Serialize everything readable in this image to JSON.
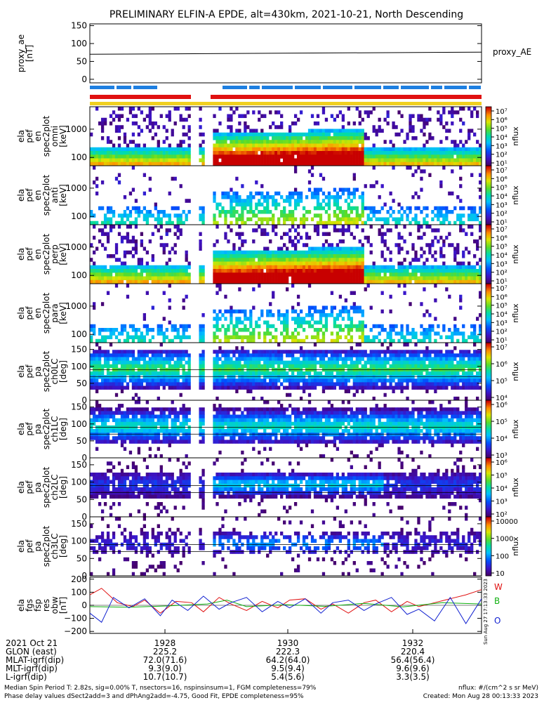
{
  "title": "PRELIMINARY ELFIN-A EPDE, alt=430km, 2021-10-21, North Descending",
  "colors": {
    "status_bar_blue": "#1e7fe0",
    "status_bar_red": "#e01010",
    "status_bar_yellow": "#f0d020",
    "fgm_w": "#e01010",
    "fgm_b": "#10b010",
    "fgm_o": "#1020d0"
  },
  "chart_data": [
    {
      "type": "line",
      "panel": "proxy_ae",
      "ylabel": [
        "proxy_ae",
        "[nT]"
      ],
      "yticks": [
        "150",
        "100",
        "50",
        "0"
      ],
      "ylim": [
        -10,
        155
      ],
      "legend": "proxy_AE",
      "series": [
        {
          "name": "proxy_AE",
          "x": [
            0,
            1
          ],
          "y": [
            70,
            76
          ]
        }
      ]
    },
    {
      "type": "heatmap",
      "panel": "ela pef en spec2plot omni",
      "ylabel": [
        "ela",
        "pef",
        "en",
        "spec2plot",
        "omni",
        "[keV]"
      ],
      "yticks": [
        "1000",
        "100"
      ],
      "colorbar_ticks": [
        "10⁷",
        "10⁶",
        "10⁵",
        "10⁴",
        "10³",
        "10²",
        "10¹"
      ],
      "colorbar_label": "nflux"
    },
    {
      "type": "heatmap",
      "panel": "ela pef en spec2plot anti",
      "ylabel": [
        "ela",
        "pef",
        "en",
        "spec2plot",
        "anti",
        "[keV]"
      ],
      "yticks": [
        "1000",
        "100"
      ],
      "colorbar_ticks": [
        "10⁷",
        "10⁶",
        "10⁵",
        "10⁴",
        "10³",
        "10²",
        "10¹"
      ],
      "colorbar_label": "nflux"
    },
    {
      "type": "heatmap",
      "panel": "ela pef en spec2plot perp",
      "ylabel": [
        "ela",
        "pef",
        "en",
        "spec2plot",
        "perp",
        "[keV]"
      ],
      "yticks": [
        "1000",
        "100"
      ],
      "colorbar_ticks": [
        "10⁷",
        "10⁶",
        "10⁵",
        "10⁴",
        "10³",
        "10²",
        "10¹"
      ],
      "colorbar_label": "nflux"
    },
    {
      "type": "heatmap",
      "panel": "ela pef en spec2plot para",
      "ylabel": [
        "ela",
        "pef",
        "en",
        "spec2plot",
        "para",
        "[keV]"
      ],
      "yticks": [
        "1000",
        "100"
      ],
      "colorbar_ticks": [
        "10⁷",
        "10⁶",
        "10⁵",
        "10⁴",
        "10³",
        "10²",
        "10¹"
      ],
      "colorbar_label": "nflux"
    },
    {
      "type": "heatmap",
      "panel": "ela pef pa spec2plot ch0LC",
      "ylabel": [
        "ela",
        "pef",
        "pa",
        "spec2plot",
        "ch0LC",
        "[deg]"
      ],
      "yticks": [
        "150",
        "100",
        "50",
        "0"
      ],
      "ylim": [
        0,
        170
      ],
      "colorbar_ticks": [
        "10⁷",
        "10⁶",
        "10⁵",
        "10⁴"
      ],
      "colorbar_label": "nflux"
    },
    {
      "type": "heatmap",
      "panel": "ela pef pa spec2plot ch1LC",
      "ylabel": [
        "ela",
        "pef",
        "pa",
        "spec2plot",
        "ch1LC",
        "[deg]"
      ],
      "yticks": [
        "150",
        "100",
        "50",
        "0"
      ],
      "ylim": [
        0,
        170
      ],
      "colorbar_ticks": [
        "10⁶",
        "10⁵",
        "10⁴",
        "10³"
      ],
      "colorbar_label": "nflux"
    },
    {
      "type": "heatmap",
      "panel": "ela pef pa spec2plot ch2LC",
      "ylabel": [
        "ela",
        "pef",
        "pa",
        "spec2plot",
        "ch2LC",
        "[deg]"
      ],
      "yticks": [
        "150",
        "100",
        "50",
        "0"
      ],
      "ylim": [
        0,
        170
      ],
      "colorbar_ticks": [
        "10⁶",
        "10⁵",
        "10⁴",
        "10³",
        "10²"
      ],
      "colorbar_label": "nflux"
    },
    {
      "type": "heatmap",
      "panel": "ela pef pa spec2plot ch3LC",
      "ylabel": [
        "ela",
        "pef",
        "pa",
        "spec2plot",
        "ch3LC",
        "[deg]"
      ],
      "yticks": [
        "150",
        "100",
        "50",
        "0"
      ],
      "ylim": [
        0,
        170
      ],
      "colorbar_ticks": [
        "10000",
        "1000",
        "100",
        "10"
      ],
      "colorbar_label": "nflux"
    },
    {
      "type": "line",
      "panel": "ela fgs fsp res obw",
      "ylabel": [
        "ela",
        "fgs",
        "fsp",
        "res",
        "obw",
        "[nT]"
      ],
      "yticks": [
        "200",
        "100",
        "0",
        "−100",
        "−200"
      ],
      "ylim": [
        -215,
        215
      ],
      "series": [
        {
          "name": "W",
          "x": [
            0,
            0.03,
            0.07,
            0.11,
            0.14,
            0.18,
            0.22,
            0.26,
            0.29,
            0.33,
            0.36,
            0.4,
            0.44,
            0.48,
            0.51,
            0.55,
            0.59,
            0.62,
            0.66,
            0.7,
            0.73,
            0.77,
            0.81,
            0.84,
            0.88,
            0.92,
            0.96,
            1
          ],
          "y": [
            80,
            130,
            20,
            -10,
            40,
            -60,
            30,
            20,
            -50,
            60,
            10,
            -40,
            30,
            -20,
            40,
            50,
            -30,
            10,
            -60,
            20,
            40,
            -50,
            30,
            -10,
            20,
            50,
            80,
            120
          ]
        },
        {
          "name": "B",
          "x": [
            0,
            0.1,
            0.2,
            0.3,
            0.35,
            0.4,
            0.5,
            0.6,
            0.7,
            0.8,
            0.9,
            1
          ],
          "y": [
            -10,
            -15,
            -5,
            10,
            40,
            -10,
            5,
            -8,
            15,
            -12,
            20,
            10
          ]
        },
        {
          "name": "O",
          "x": [
            0,
            0.03,
            0.06,
            0.1,
            0.14,
            0.18,
            0.21,
            0.25,
            0.29,
            0.33,
            0.36,
            0.4,
            0.44,
            0.48,
            0.51,
            0.55,
            0.59,
            0.62,
            0.66,
            0.7,
            0.73,
            0.77,
            0.81,
            0.84,
            0.88,
            0.92,
            0.96,
            1
          ],
          "y": [
            -60,
            -130,
            60,
            -20,
            50,
            -80,
            40,
            -40,
            70,
            -30,
            20,
            60,
            -50,
            30,
            -20,
            50,
            -60,
            20,
            40,
            -40,
            10,
            60,
            -70,
            -30,
            -120,
            60,
            -140,
            50
          ]
        }
      ],
      "legend": [
        "W",
        "B",
        "O"
      ]
    }
  ],
  "x_axis": {
    "ticks": [
      "1928",
      "1930",
      "1932"
    ],
    "rows": [
      {
        "label": "2021 Oct 21",
        "values": [
          "1928",
          "1930",
          "1932"
        ]
      },
      {
        "label": "GLON (east)",
        "values": [
          "225.2",
          "222.3",
          "220.4"
        ]
      },
      {
        "label": "MLAT-igrf(dip)",
        "values": [
          "72.0(71.6)",
          "64.2(64.0)",
          "56.4(56.4)"
        ]
      },
      {
        "label": "MLT-igrf(dip)",
        "values": [
          "9.3(9.0)",
          "9.5(9.4)",
          "9.6(9.6)"
        ]
      },
      {
        "label": "L-igrf(dip)",
        "values": [
          "10.7(10.7)",
          "5.4(5.6)",
          "3.3(3.5)"
        ]
      }
    ]
  },
  "footer": {
    "left_1": "Median Spin Period T: 2.82s, sig=0.00% T, nsectors=16, nspinsinsum=1, FGM completeness=79%",
    "left_2": "Phase delay values dSect2add=3 and dPhAng2add=-4.75, Good Fit, EPDE completeness=95%",
    "right_1": "nflux: #/(cm^2 s sr MeV)",
    "right_2": "Created: Mon Aug 28 00:13:33 2023",
    "side_stamp": "Sun Aug 27 17:13:33 2023"
  }
}
